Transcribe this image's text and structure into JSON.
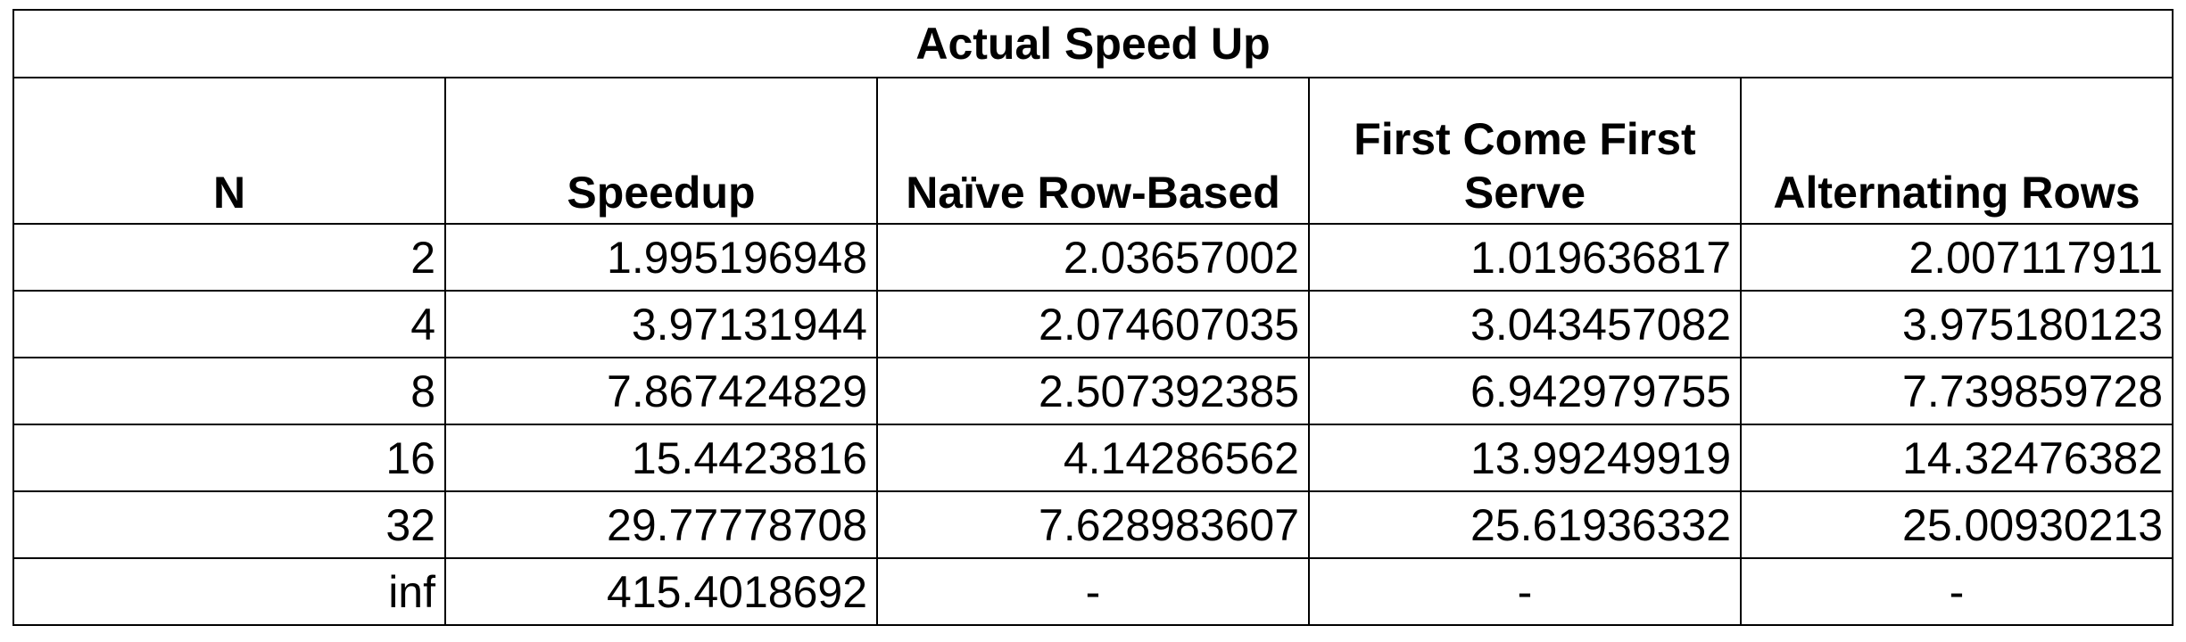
{
  "chart_data": {
    "type": "table",
    "title": "Actual Speed Up",
    "columns": [
      "N",
      "Speedup",
      "Naïve Row-Based",
      "First Come First Serve",
      "Alternating Rows"
    ],
    "rows": [
      [
        "2",
        "1.995196948",
        "2.03657002",
        "1.019636817",
        "2.007117911"
      ],
      [
        "4",
        "3.97131944",
        "2.074607035",
        "3.043457082",
        "3.975180123"
      ],
      [
        "8",
        "7.867424829",
        "2.507392385",
        "6.942979755",
        "7.739859728"
      ],
      [
        "16",
        "15.4423816",
        "4.14286562",
        "13.99249919",
        "14.32476382"
      ],
      [
        "32",
        "29.77778708",
        "7.628983607",
        "25.61936332",
        "25.00930213"
      ],
      [
        "inf",
        "415.4018692",
        "-",
        "-",
        "-"
      ]
    ]
  }
}
